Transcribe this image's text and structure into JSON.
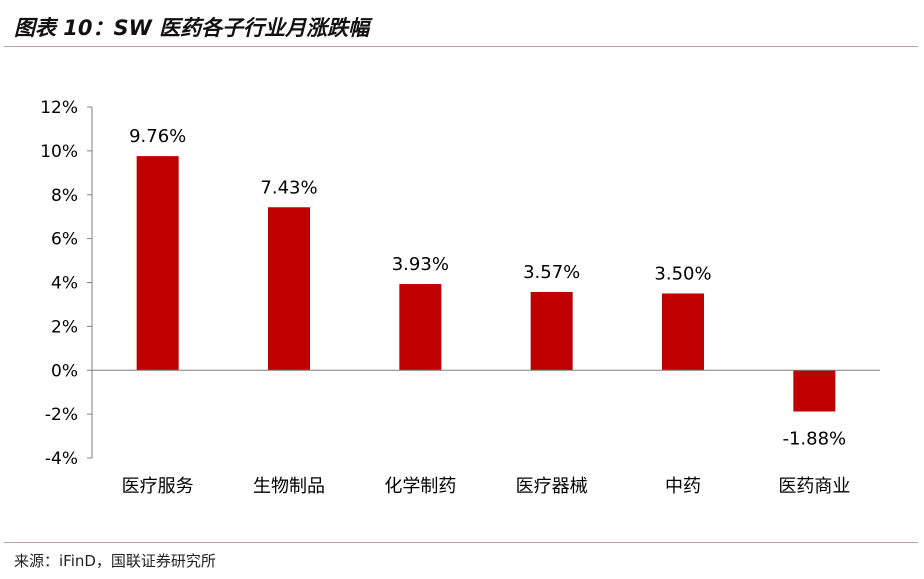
{
  "title": "图表 10：SW 医药各子行业月涨跌幅",
  "source": "来源：iFinD，国联证券研究所",
  "colors": {
    "bar": "#c00000",
    "axis": "#7f7f7f",
    "text": "#000000",
    "rule": "#c4a0a8"
  },
  "chart_data": {
    "type": "bar",
    "title": "",
    "xlabel": "",
    "ylabel": "",
    "categories": [
      "医疗服务",
      "生物制品",
      "化学制药",
      "医疗器械",
      "中药",
      "医药商业"
    ],
    "values": [
      9.76,
      7.43,
      3.93,
      3.57,
      3.5,
      -1.88
    ],
    "data_labels": [
      "9.76%",
      "7.43%",
      "3.93%",
      "3.57%",
      "3.50%",
      "-1.88%"
    ],
    "ylim": [
      -4,
      12
    ],
    "yticks": [
      -4,
      -2,
      0,
      2,
      4,
      6,
      8,
      10,
      12
    ],
    "ytick_labels": [
      "-4%",
      "-2%",
      "0%",
      "2%",
      "4%",
      "6%",
      "8%",
      "10%",
      "12%"
    ],
    "grid": false,
    "legend": "none"
  }
}
